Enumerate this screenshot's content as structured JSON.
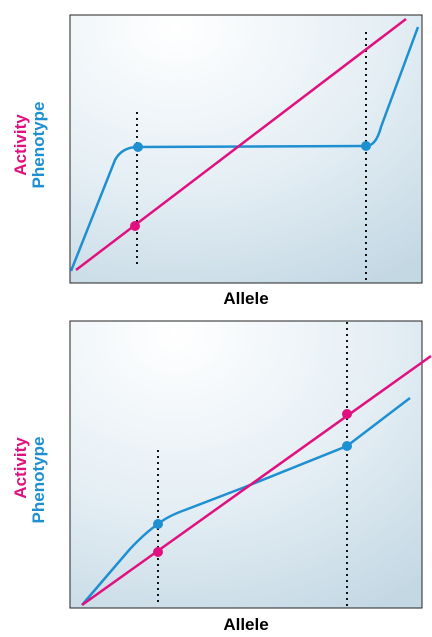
{
  "colors": {
    "activity": "#E0117F",
    "phenotype": "#1E8FD0",
    "panel_top": "#ffffff",
    "panel_bottom": "#c7dbe6",
    "frame": "#222222"
  },
  "panels": [
    {
      "ylabel_activity": "Activity",
      "ylabel_phenotype": "Phenotype",
      "xlabel": "Allele"
    },
    {
      "ylabel_activity": "Activity",
      "ylabel_phenotype": "Phenotype",
      "xlabel": "Allele"
    }
  ]
}
